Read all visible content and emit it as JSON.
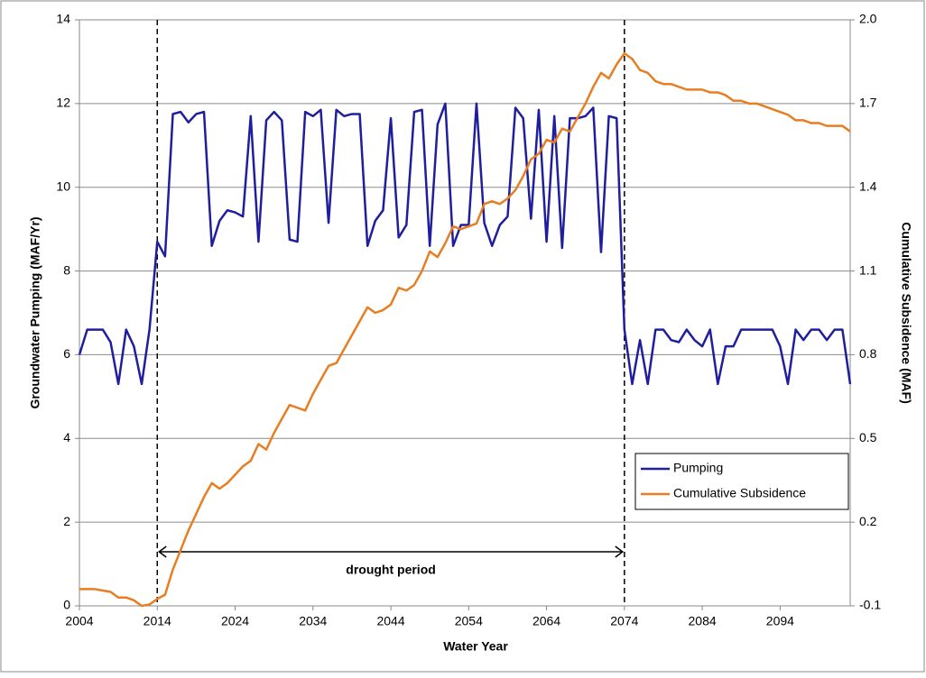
{
  "chart_data": {
    "type": "line",
    "x_label": "Water Year",
    "y_label": "Groundwater Pumping (MAF/Yr)",
    "y2_label": "Cumulative Subsidence (MAF)",
    "x": [
      2004,
      2005,
      2006,
      2007,
      2008,
      2009,
      2010,
      2011,
      2012,
      2013,
      2014,
      2015,
      2016,
      2017,
      2018,
      2019,
      2020,
      2021,
      2022,
      2023,
      2024,
      2025,
      2026,
      2027,
      2028,
      2029,
      2030,
      2031,
      2032,
      2033,
      2034,
      2035,
      2036,
      2037,
      2038,
      2039,
      2040,
      2041,
      2042,
      2043,
      2044,
      2045,
      2046,
      2047,
      2048,
      2049,
      2050,
      2051,
      2052,
      2053,
      2054,
      2055,
      2056,
      2057,
      2058,
      2059,
      2060,
      2061,
      2062,
      2063,
      2064,
      2065,
      2066,
      2067,
      2068,
      2069,
      2070,
      2071,
      2072,
      2073,
      2074,
      2075,
      2076,
      2077,
      2078,
      2079,
      2080,
      2081,
      2082,
      2083,
      2084,
      2085,
      2086,
      2087,
      2088,
      2089,
      2090,
      2091,
      2092,
      2093,
      2094,
      2095,
      2096,
      2097,
      2098,
      2099,
      2100,
      2101,
      2102,
      2103
    ],
    "series": [
      {
        "name": "Pumping",
        "color": "#1f1f9e",
        "values": [
          6.0,
          6.6,
          6.6,
          6.6,
          6.3,
          5.3,
          6.6,
          6.2,
          5.3,
          6.6,
          8.7,
          8.35,
          11.75,
          11.8,
          11.55,
          11.75,
          11.8,
          8.6,
          9.2,
          9.45,
          9.4,
          9.3,
          11.7,
          8.7,
          11.6,
          11.8,
          11.6,
          8.75,
          8.7,
          11.8,
          11.7,
          11.85,
          9.15,
          11.85,
          11.7,
          11.75,
          11.75,
          8.6,
          9.2,
          9.45,
          11.65,
          8.8,
          9.1,
          11.8,
          11.85,
          8.6,
          11.5,
          12.0,
          8.6,
          9.1,
          9.1,
          12.0,
          9.15,
          8.6,
          9.1,
          9.3,
          11.9,
          11.65,
          9.25,
          11.85,
          8.7,
          11.7,
          8.55,
          11.65,
          11.65,
          11.7,
          11.9,
          8.45,
          11.7,
          11.65,
          6.6,
          5.3,
          6.35,
          5.3,
          6.6,
          6.6,
          6.35,
          6.3,
          6.6,
          6.35,
          6.2,
          6.6,
          5.3,
          6.2,
          6.2,
          6.6,
          6.6,
          6.6,
          6.6,
          6.6,
          6.2,
          5.3,
          6.6,
          6.35,
          6.6,
          6.6,
          6.35,
          6.6,
          6.6,
          5.3
        ]
      },
      {
        "name": "Cumulative Subsidence",
        "color": "#e87e22",
        "axis": "y2",
        "values": [
          -0.04,
          -0.04,
          -0.04,
          -0.045,
          -0.05,
          -0.07,
          -0.07,
          -0.08,
          -0.1,
          -0.095,
          -0.075,
          -0.06,
          0.03,
          0.1,
          0.17,
          0.23,
          0.29,
          0.34,
          0.32,
          0.34,
          0.37,
          0.4,
          0.42,
          0.48,
          0.46,
          0.52,
          0.57,
          0.62,
          0.61,
          0.6,
          0.66,
          0.71,
          0.76,
          0.77,
          0.82,
          0.87,
          0.92,
          0.97,
          0.95,
          0.96,
          0.98,
          1.04,
          1.03,
          1.05,
          1.1,
          1.17,
          1.15,
          1.2,
          1.26,
          1.25,
          1.26,
          1.27,
          1.34,
          1.35,
          1.34,
          1.36,
          1.39,
          1.44,
          1.5,
          1.52,
          1.57,
          1.56,
          1.61,
          1.6,
          1.65,
          1.7,
          1.76,
          1.81,
          1.79,
          1.84,
          1.88,
          1.86,
          1.82,
          1.81,
          1.78,
          1.77,
          1.77,
          1.76,
          1.75,
          1.75,
          1.75,
          1.74,
          1.74,
          1.73,
          1.71,
          1.71,
          1.7,
          1.7,
          1.69,
          1.68,
          1.67,
          1.66,
          1.64,
          1.64,
          1.63,
          1.63,
          1.62,
          1.62,
          1.62,
          1.6
        ]
      }
    ],
    "xlim": [
      2004,
      2103
    ],
    "xticks": [
      2004,
      2014,
      2024,
      2034,
      2044,
      2054,
      2064,
      2074,
      2084,
      2094
    ],
    "ylim": [
      0,
      14
    ],
    "yticks": [
      0,
      2,
      4,
      6,
      8,
      10,
      12,
      14
    ],
    "y2lim": [
      -0.1,
      2.0
    ],
    "y2ticks": [
      -0.1,
      0.2,
      0.5,
      0.8,
      1.1,
      1.4,
      1.7,
      {
        "value": 2.0,
        "label": "2.0"
      }
    ],
    "grid": true,
    "legend": "lower right",
    "annotation": {
      "text": "drought period",
      "x": [
        2014,
        2074
      ]
    }
  }
}
